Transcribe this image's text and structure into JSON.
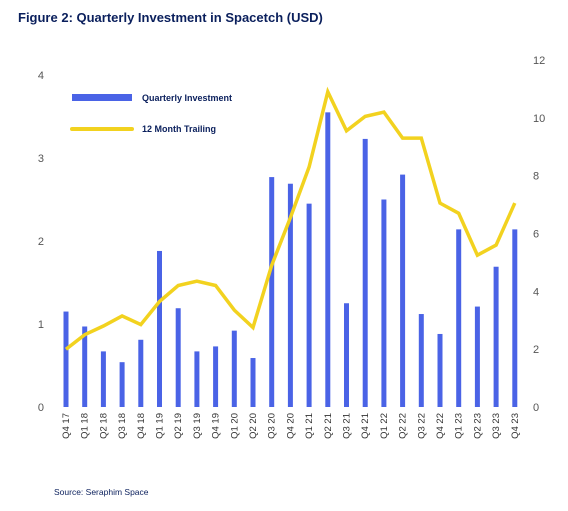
{
  "title": "Figure 2: Quarterly Investment in Spacetch (USD)",
  "source": "Source: Seraphim Space",
  "chart_data": {
    "type": "bar",
    "categories": [
      "Q4 17",
      "Q1 18",
      "Q2 18",
      "Q3 18",
      "Q4 18",
      "Q1 19",
      "Q2 19",
      "Q3 19",
      "Q4 19",
      "Q1 20",
      "Q2 20",
      "Q3 20",
      "Q4 20",
      "Q1 21",
      "Q2 21",
      "Q3 21",
      "Q4 21",
      "Q1 22",
      "Q2 22",
      "Q3 22",
      "Q4 22",
      "Q1 23",
      "Q2 23",
      "Q3 23",
      "Q4 23"
    ],
    "series": [
      {
        "name": "Quarterly Investment",
        "type": "bar",
        "axis": "left",
        "color": "#4a63e6",
        "values": [
          1.15,
          0.97,
          0.67,
          0.54,
          0.81,
          1.88,
          1.19,
          0.67,
          0.73,
          0.92,
          0.59,
          2.77,
          2.69,
          2.45,
          3.55,
          1.25,
          3.23,
          2.5,
          2.8,
          1.12,
          0.88,
          2.14,
          1.21,
          1.69,
          2.14
        ]
      },
      {
        "name": "12 Month Trailing",
        "type": "line",
        "axis": "right",
        "color": "#f2d21f",
        "values": [
          2.0,
          2.5,
          2.8,
          3.15,
          2.85,
          3.65,
          4.2,
          4.35,
          4.2,
          3.35,
          2.75,
          4.9,
          6.55,
          8.3,
          10.9,
          9.55,
          10.05,
          10.2,
          9.3,
          9.3,
          7.05,
          6.7,
          5.25,
          5.6,
          7.05
        ]
      }
    ],
    "yleft": {
      "ylim": [
        0,
        4
      ],
      "ticks": [
        "0",
        "1",
        "2",
        "3",
        "4"
      ]
    },
    "yright": {
      "ylim": [
        0,
        12
      ],
      "ticks": [
        "0",
        "2",
        "4",
        "6",
        "8",
        "10",
        "12"
      ]
    },
    "legend_position": "top-left",
    "grid": false
  }
}
